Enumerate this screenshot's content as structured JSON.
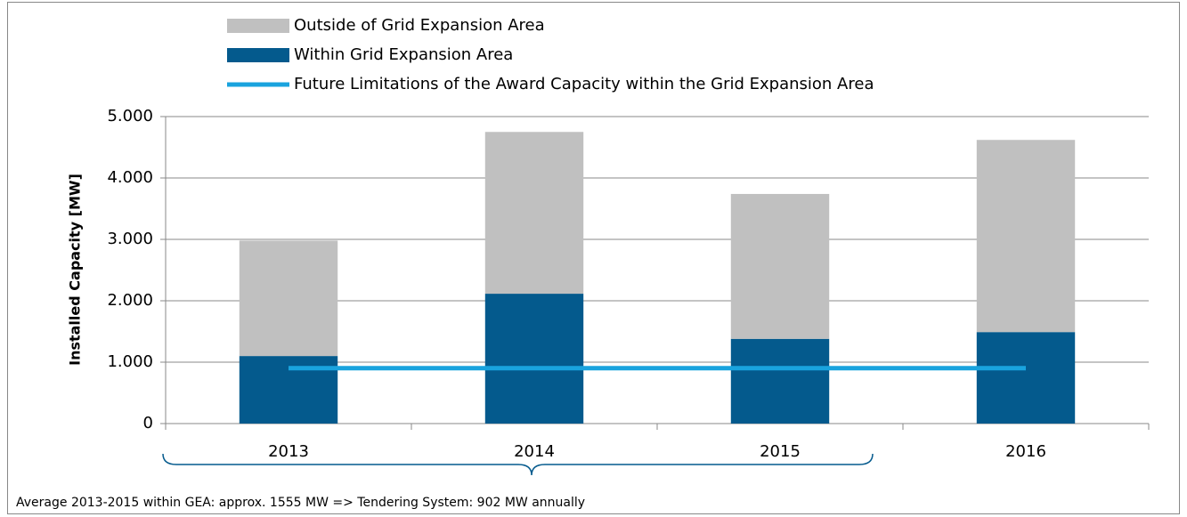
{
  "chart_data": {
    "type": "bar",
    "categories": [
      "2013",
      "2014",
      "2015",
      "2016"
    ],
    "series": [
      {
        "name": "Outside of Grid Expansion Area",
        "color": "#c0c0c0",
        "type": "bar",
        "values": [
          1880,
          2635,
          2360,
          3130
        ]
      },
      {
        "name": "Within Grid Expansion Area",
        "color": "#045a8d",
        "type": "bar",
        "values": [
          1100,
          2115,
          1380,
          1490
        ]
      },
      {
        "name": "Future Limitations of the Award Capacity within the Grid Expansion Area",
        "color": "#19a3de",
        "type": "line",
        "values": [
          902,
          902,
          902,
          902
        ]
      }
    ],
    "y_label": "Installed Capacity [MW]",
    "ylim": [
      0,
      5000
    ],
    "yticks": [
      0,
      {
        "value": 1000,
        "label": "1.000"
      },
      {
        "value": 2000,
        "label": "2.000"
      },
      {
        "value": 3000,
        "label": "3.000"
      },
      {
        "value": 4000,
        "label": "4.000"
      },
      {
        "value": 5000,
        "label": "5.000"
      }
    ],
    "grid": true,
    "annotation": "Average 2013-2015 within GEA: approx. 1555 MW => Tendering System: 902 MW annually"
  }
}
